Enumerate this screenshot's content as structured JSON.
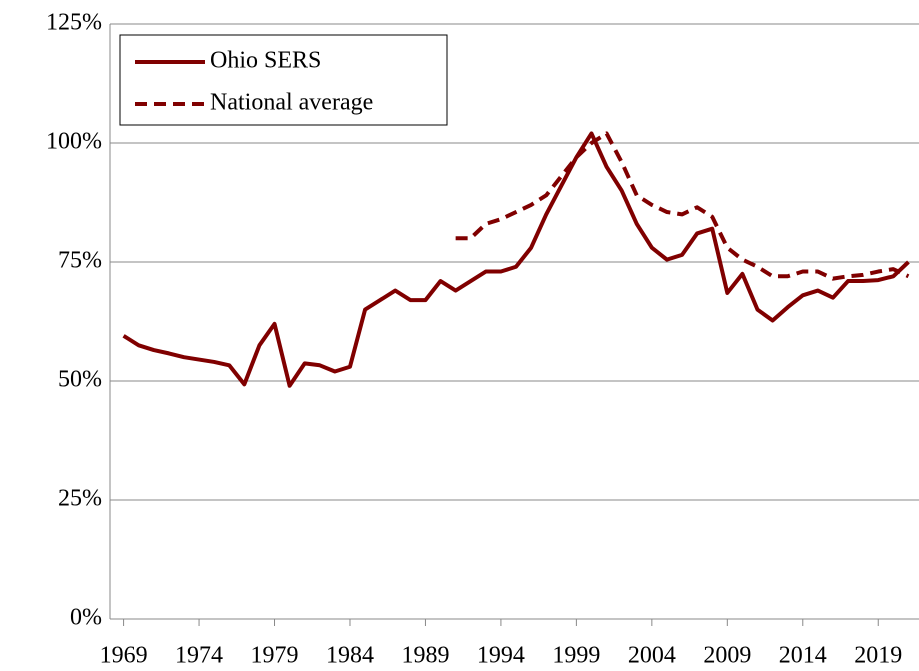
{
  "chart_data": {
    "type": "line",
    "x": [
      1969,
      1970,
      1971,
      1972,
      1973,
      1974,
      1975,
      1976,
      1977,
      1978,
      1979,
      1980,
      1981,
      1982,
      1983,
      1984,
      1985,
      1986,
      1987,
      1988,
      1989,
      1990,
      1991,
      1992,
      1993,
      1994,
      1995,
      1996,
      1997,
      1998,
      1999,
      2000,
      2001,
      2002,
      2003,
      2004,
      2005,
      2006,
      2007,
      2008,
      2009,
      2010,
      2011,
      2012,
      2013,
      2014,
      2015,
      2016,
      2017,
      2018,
      2019,
      2020,
      2021
    ],
    "series": [
      {
        "name": "Ohio SERS",
        "color": "#800000",
        "dash": false,
        "values": [
          59.5,
          57.5,
          56.5,
          55.8,
          55,
          54.5,
          54,
          53.3,
          49.3,
          57.5,
          62,
          49,
          53.7,
          53.3,
          52,
          53,
          65,
          67,
          69,
          67,
          67,
          71,
          69,
          71,
          73,
          73,
          74,
          78,
          85,
          91,
          97,
          102,
          95,
          90,
          83,
          78,
          75.5,
          76.5,
          81,
          82,
          68.5,
          72.5,
          65,
          62.7,
          65.5,
          68,
          69,
          67.5,
          71,
          71,
          71.2,
          72,
          75
        ]
      },
      {
        "name": "National average",
        "color": "#800000",
        "dash": true,
        "values": [
          null,
          null,
          null,
          null,
          null,
          null,
          null,
          null,
          null,
          null,
          null,
          null,
          null,
          null,
          null,
          null,
          null,
          null,
          null,
          null,
          null,
          null,
          80,
          80,
          83,
          84,
          85.5,
          87,
          89,
          93,
          97,
          100,
          102,
          96,
          89,
          87,
          85.5,
          85,
          86.5,
          84.5,
          78,
          75.5,
          74,
          72,
          72,
          73,
          73,
          71.5,
          72,
          72.3,
          73,
          73.5,
          72
        ]
      }
    ],
    "xlim": [
      1968.1,
      2021.7
    ],
    "xticks": [
      1969,
      1974,
      1979,
      1984,
      1989,
      1994,
      1999,
      2004,
      2009,
      2014,
      2019
    ],
    "ylim": [
      0,
      125
    ],
    "yticks": [
      {
        "value": 0,
        "label": "0%"
      },
      {
        "value": 25,
        "label": "25%"
      },
      {
        "value": 50,
        "label": "50%"
      },
      {
        "value": 75,
        "label": "75%"
      },
      {
        "value": 100,
        "label": "100%"
      },
      {
        "value": 125,
        "label": "125%"
      }
    ],
    "grid": true,
    "legend": "top-left"
  }
}
